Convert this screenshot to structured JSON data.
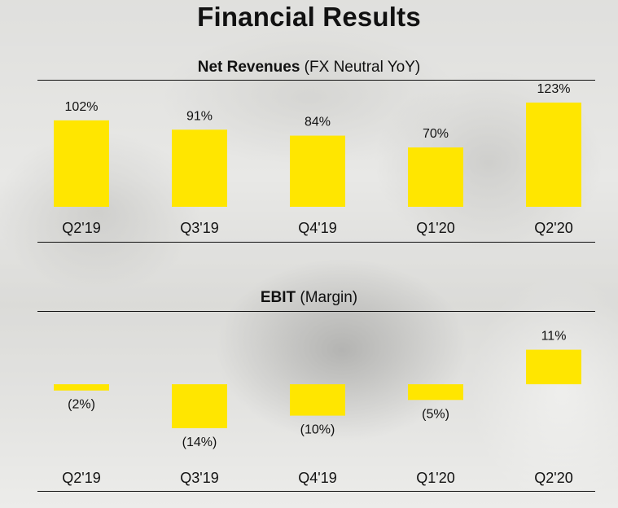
{
  "title": "Financial Results",
  "chart_data": [
    {
      "type": "bar",
      "title_bold": "Net Revenues",
      "title_rest": " (FX Neutral YoY)",
      "categories": [
        "Q2'19",
        "Q3'19",
        "Q4'19",
        "Q1'20",
        "Q2'20"
      ],
      "values": [
        102,
        91,
        84,
        70,
        123
      ],
      "value_labels": [
        "102%",
        "91%",
        "84%",
        "70%",
        "123%"
      ],
      "unit": "%",
      "ylim": [
        0,
        123
      ],
      "bar_color": "#ffe600"
    },
    {
      "type": "bar",
      "title_bold": "EBIT",
      "title_rest": " (Margin)",
      "categories": [
        "Q2'19",
        "Q3'19",
        "Q4'19",
        "Q1'20",
        "Q2'20"
      ],
      "values": [
        -2,
        -14,
        -10,
        -5,
        11
      ],
      "value_labels": [
        "(2%)",
        "(14%)",
        "(10%)",
        "(5%)",
        "11%"
      ],
      "unit": "%",
      "ylim": [
        -14,
        11
      ],
      "bar_color": "#ffe600"
    }
  ]
}
